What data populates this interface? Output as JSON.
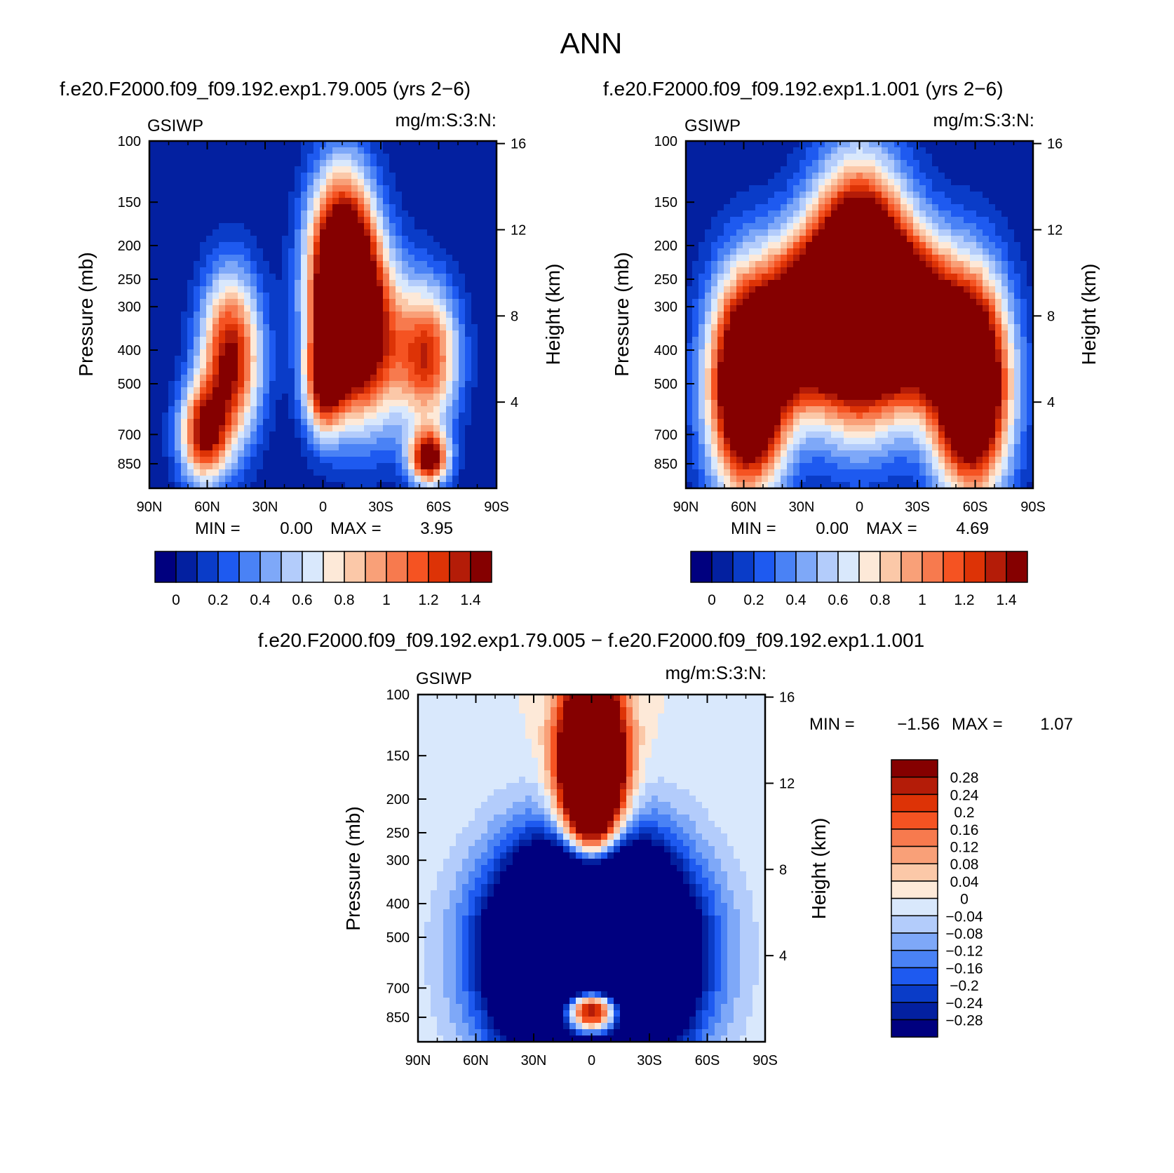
{
  "figure": {
    "title": "ANN",
    "diff_title": "f.e20.F2000.f09_f09.192.exp1.79.005 − f.e20.F2000.f09_f09.192.exp1.1.001"
  },
  "colors": {
    "seq_levels": [
      "#00007f",
      "#0320a0",
      "#0a3cc8",
      "#1e5af0",
      "#4a82f5",
      "#7ea8f8",
      "#b3ccfb",
      "#d9e8fc",
      "#fde9d8",
      "#fbc8a8",
      "#f9a078",
      "#f77a4e",
      "#f55322",
      "#dd3306",
      "#b41c08",
      "#850000"
    ],
    "diff_levels": [
      "#850000",
      "#b41c08",
      "#dd3306",
      "#f55322",
      "#f77a4e",
      "#f9a078",
      "#fbc8a8",
      "#fde9d8",
      "#d9e8fc",
      "#b3ccfb",
      "#7ea8f8",
      "#4a82f5",
      "#1e5af0",
      "#0a3cc8",
      "#0320a0",
      "#00007f"
    ]
  },
  "chart_data": [
    {
      "type": "heatmap",
      "title": "f.e20.F2000.f09_f09.192.exp1.79.005 (yrs 2−6)",
      "variable": "GSIWP",
      "units": "mg/m:S:3:N:",
      "xlabel": "",
      "ylabel": "Pressure (mb)",
      "ylabel_right": "Height (km)",
      "x_ticks": [
        "90N",
        "60N",
        "30N",
        "0",
        "30S",
        "60S",
        "90S"
      ],
      "y_ticks": [
        "100",
        "150",
        "200",
        "250",
        "300",
        "400",
        "500",
        "700",
        "850"
      ],
      "y_right_ticks": [
        "16",
        "12",
        "8",
        "4"
      ],
      "min_label": "MIN =",
      "min_value": "0.00",
      "max_label": "MAX =",
      "max_value": "3.95",
      "colorbar_labels": [
        "0",
        "0.2",
        "0.4",
        "0.6",
        "0.8",
        "1",
        "1.2",
        "1.4"
      ],
      "blobs": [
        {
          "lat": -10,
          "p": 250,
          "v": 2.4,
          "sx": 12,
          "sy": 150
        },
        {
          "lat": 48,
          "p": 420,
          "v": 1.45,
          "sx": 11,
          "sy": 200
        },
        {
          "lat": 62,
          "p": 700,
          "v": 1.3,
          "sx": 9,
          "sy": 180
        },
        {
          "lat": 0,
          "p": 500,
          "v": 1.1,
          "sx": 7,
          "sy": 140
        },
        {
          "lat": -25,
          "p": 380,
          "v": 1.1,
          "sx": 14,
          "sy": 200
        },
        {
          "lat": -55,
          "p": 420,
          "v": 1.2,
          "sx": 11,
          "sy": 170
        },
        {
          "lat": -55,
          "p": 820,
          "v": 1.5,
          "sx": 7,
          "sy": 110
        }
      ]
    },
    {
      "type": "heatmap",
      "title": "f.e20.F2000.f09_f09.192.exp1.1.001 (yrs 2−6)",
      "variable": "GSIWP",
      "units": "mg/m:S:3:N:",
      "xlabel": "",
      "ylabel": "Pressure (mb)",
      "ylabel_right": "Height (km)",
      "x_ticks": [
        "90N",
        "60N",
        "30N",
        "0",
        "30S",
        "60S",
        "90S"
      ],
      "y_ticks": [
        "100",
        "150",
        "200",
        "250",
        "300",
        "400",
        "500",
        "700",
        "850"
      ],
      "y_right_ticks": [
        "16",
        "12",
        "8",
        "4"
      ],
      "min_label": "MIN =",
      "min_value": "0.00",
      "max_label": "MAX =",
      "max_value": "4.69",
      "colorbar_labels": [
        "0",
        "0.2",
        "0.4",
        "0.6",
        "0.8",
        "1",
        "1.2",
        "1.4"
      ],
      "blobs": [
        {
          "lat": 0,
          "p": 280,
          "v": 3.0,
          "sx": 17,
          "sy": 200
        },
        {
          "lat": 58,
          "p": 500,
          "v": 2.4,
          "sx": 14,
          "sy": 320
        },
        {
          "lat": -58,
          "p": 500,
          "v": 2.4,
          "sx": 14,
          "sy": 320
        },
        {
          "lat": 30,
          "p": 330,
          "v": 1.6,
          "sx": 14,
          "sy": 150
        },
        {
          "lat": -30,
          "p": 330,
          "v": 1.6,
          "sx": 14,
          "sy": 150
        }
      ]
    },
    {
      "type": "heatmap",
      "title": "f.e20.F2000.f09_f09.192.exp1.79.005 − f.e20.F2000.f09_f09.192.exp1.1.001",
      "variable": "GSIWP",
      "units": "mg/m:S:3:N:",
      "xlabel": "",
      "ylabel": "Pressure (mb)",
      "ylabel_right": "Height (km)",
      "x_ticks": [
        "90N",
        "60N",
        "30N",
        "0",
        "30S",
        "60S",
        "90S"
      ],
      "y_ticks": [
        "100",
        "150",
        "200",
        "250",
        "300",
        "400",
        "500",
        "700",
        "850"
      ],
      "y_right_ticks": [
        "16",
        "12",
        "8",
        "4"
      ],
      "min_label": "MIN =",
      "min_value": "−1.56",
      "max_label": "MAX =",
      "max_value": "1.07",
      "colorbar_labels": [
        "0.28",
        "0.24",
        "0.2",
        "0.16",
        "0.12",
        "0.08",
        "0.04",
        "0",
        "−0.04",
        "−0.08",
        "−0.12",
        "−0.16",
        "−0.2",
        "−0.24",
        "−0.28"
      ],
      "blobs": [
        {
          "lat": 0,
          "p": 170,
          "v": 1.1,
          "sx": 11,
          "sy": 90
        },
        {
          "lat": 0,
          "p": 560,
          "v": -1.5,
          "sx": 32,
          "sy": 350
        },
        {
          "lat": 0,
          "p": 800,
          "v": 1.4,
          "sx": 13,
          "sy": 120
        }
      ]
    }
  ]
}
